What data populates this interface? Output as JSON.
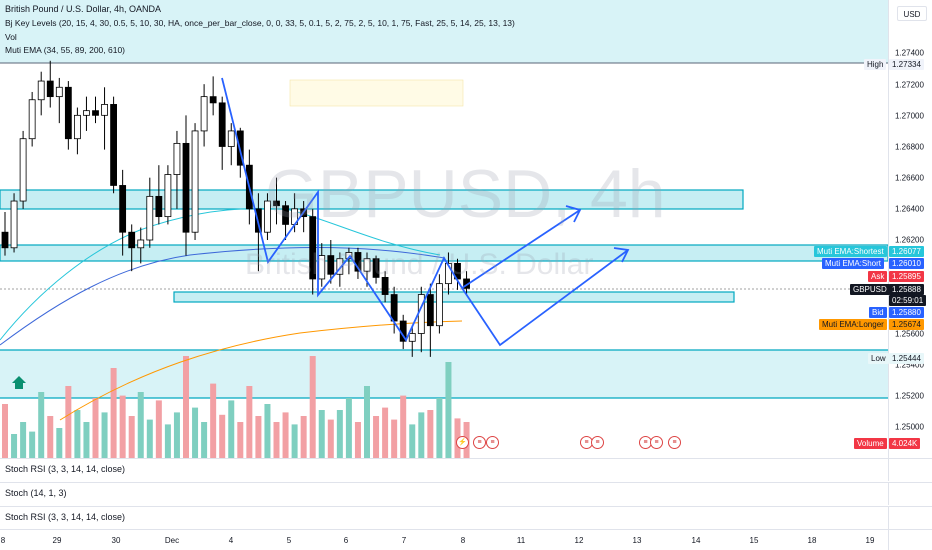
{
  "chart": {
    "title": "British Pound / U.S. Dollar, 4h, OANDA",
    "watermark_symbol": "GBPUSD, 4h",
    "watermark_name": "British Pound / U.S. Dollar",
    "indicators": [
      "Bj Key Levels (20, 15, 4, 30, 0.5, 5, 10, 30, HA, once_per_bar_close, 0, 0, 33, 5, 0.1, 5, 2, 75, 2, 5, 10, 1, 75, Fast, 25, 5, 14, 25, 13, 13)",
      "Vol",
      "Muti EMA (34, 55, 89, 200, 610)"
    ],
    "currency": "USD",
    "colors": {
      "up": "#ffffff",
      "down": "#000000",
      "zone": "#b8eaf0",
      "zone_border": "#00a8c0",
      "arrow": "#2962ff",
      "ema_short": "#3d68d9",
      "ema_shortest": "#26c6da",
      "ema_longer": "#ff9800",
      "vol_up": "#7fcfc0",
      "vol_down": "#f2a0a4"
    }
  },
  "price_axis": {
    "labels": [
      "1.27400",
      "1.27200",
      "1.27000",
      "1.26800",
      "1.26600",
      "1.26400",
      "1.26200",
      "1.25600",
      "1.25400",
      "1.25200",
      "1.25000"
    ],
    "high": {
      "label": "High",
      "value": "1.27334"
    },
    "low": {
      "label": "Low",
      "value": "1.25444"
    },
    "shortest": {
      "label": "Muti EMA:Shortest",
      "value": "1.26077"
    },
    "short": {
      "label": "Muti EMA:Short",
      "value": "1.26010"
    },
    "ask": {
      "label": "Ask",
      "value": "1.25895"
    },
    "current": {
      "label": "GBPUSD",
      "value": "1.25888",
      "countdown": "02:59:01"
    },
    "bid": {
      "label": "Bid",
      "value": "1.25880"
    },
    "longer": {
      "label": "Muti EMA:Longer",
      "value": "1.25674"
    },
    "volume": {
      "label": "Volume",
      "value": "4.024K"
    }
  },
  "panes": [
    "Stoch RSI (3, 3, 14, 14, close)",
    "Stoch (14, 1, 3)",
    "Stoch RSI (3, 3, 14, 14, close)"
  ],
  "time_axis": [
    "8",
    "29",
    "30",
    "Dec",
    "4",
    "5",
    "6",
    "7",
    "8",
    "11",
    "12",
    "13",
    "14",
    "15",
    "18",
    "19"
  ],
  "candles": [
    [
      1.2625,
      1.2638,
      1.261,
      1.2615
    ],
    [
      1.2615,
      1.265,
      1.2612,
      1.2645
    ],
    [
      1.2645,
      1.269,
      1.264,
      1.2685
    ],
    [
      1.2685,
      1.2715,
      1.268,
      1.271
    ],
    [
      1.271,
      1.2728,
      1.27,
      1.2722
    ],
    [
      1.2722,
      1.2735,
      1.2705,
      1.2712
    ],
    [
      1.2712,
      1.2724,
      1.2695,
      1.2718
    ],
    [
      1.2718,
      1.2722,
      1.2678,
      1.2685
    ],
    [
      1.2685,
      1.2705,
      1.2675,
      1.27
    ],
    [
      1.27,
      1.2712,
      1.269,
      1.2703
    ],
    [
      1.2703,
      1.2712,
      1.2695,
      1.27
    ],
    [
      1.27,
      1.2718,
      1.2678,
      1.2707
    ],
    [
      1.2707,
      1.2712,
      1.265,
      1.2655
    ],
    [
      1.2655,
      1.2665,
      1.261,
      1.2625
    ],
    [
      1.2625,
      1.263,
      1.26,
      1.2615
    ],
    [
      1.2615,
      1.2628,
      1.2605,
      1.262
    ],
    [
      1.262,
      1.266,
      1.2615,
      1.2648
    ],
    [
      1.2648,
      1.2668,
      1.263,
      1.2635
    ],
    [
      1.2635,
      1.2668,
      1.263,
      1.2662
    ],
    [
      1.2662,
      1.269,
      1.264,
      1.2682
    ],
    [
      1.2682,
      1.27,
      1.261,
      1.2625
    ],
    [
      1.2625,
      1.2695,
      1.262,
      1.269
    ],
    [
      1.269,
      1.272,
      1.268,
      1.2712
    ],
    [
      1.2712,
      1.2725,
      1.27,
      1.2708
    ],
    [
      1.2708,
      1.2712,
      1.2665,
      1.268
    ],
    [
      1.268,
      1.2695,
      1.2668,
      1.269
    ],
    [
      1.269,
      1.2692,
      1.266,
      1.2668
    ],
    [
      1.2668,
      1.2678,
      1.263,
      1.264
    ],
    [
      1.264,
      1.265,
      1.26,
      1.2625
    ],
    [
      1.2625,
      1.265,
      1.262,
      1.2645
    ],
    [
      1.2645,
      1.266,
      1.263,
      1.2642
    ],
    [
      1.2642,
      1.2645,
      1.262,
      1.263
    ],
    [
      1.263,
      1.265,
      1.2625,
      1.264
    ],
    [
      1.264,
      1.2645,
      1.2625,
      1.2635
    ],
    [
      1.2635,
      1.264,
      1.2585,
      1.2595
    ],
    [
      1.2595,
      1.2618,
      1.259,
      1.261
    ],
    [
      1.261,
      1.262,
      1.2592,
      1.2598
    ],
    [
      1.2598,
      1.2612,
      1.259,
      1.2608
    ],
    [
      1.2608,
      1.2615,
      1.2598,
      1.2612
    ],
    [
      1.2612,
      1.2615,
      1.2595,
      1.26
    ],
    [
      1.26,
      1.2612,
      1.259,
      1.2608
    ],
    [
      1.2608,
      1.261,
      1.2592,
      1.2596
    ],
    [
      1.2596,
      1.26,
      1.258,
      1.2585
    ],
    [
      1.2585,
      1.259,
      1.256,
      1.2568
    ],
    [
      1.2568,
      1.2572,
      1.255,
      1.2555
    ],
    [
      1.2555,
      1.2565,
      1.2545,
      1.256
    ],
    [
      1.256,
      1.259,
      1.2548,
      1.2585
    ],
    [
      1.2585,
      1.2592,
      1.2545,
      1.2565
    ],
    [
      1.2565,
      1.2598,
      1.256,
      1.2592
    ],
    [
      1.2592,
      1.2612,
      1.2585,
      1.2605
    ],
    [
      1.2605,
      1.2608,
      1.2588,
      1.2595
    ],
    [
      1.2595,
      1.26,
      1.2585,
      1.2589
    ]
  ],
  "volumes": [
    0.45,
    0.2,
    0.3,
    0.22,
    0.55,
    0.35,
    0.25,
    0.6,
    0.4,
    0.3,
    0.5,
    0.38,
    0.75,
    0.52,
    0.35,
    0.55,
    0.32,
    0.48,
    0.28,
    0.38,
    0.85,
    0.42,
    0.3,
    0.62,
    0.36,
    0.48,
    0.3,
    0.6,
    0.35,
    0.45,
    0.3,
    0.38,
    0.28,
    0.35,
    0.85,
    0.4,
    0.32,
    0.4,
    0.5,
    0.3,
    0.6,
    0.35,
    0.42,
    0.32,
    0.52,
    0.28,
    0.38,
    0.4,
    0.5,
    0.8,
    0.33,
    0.3
  ]
}
